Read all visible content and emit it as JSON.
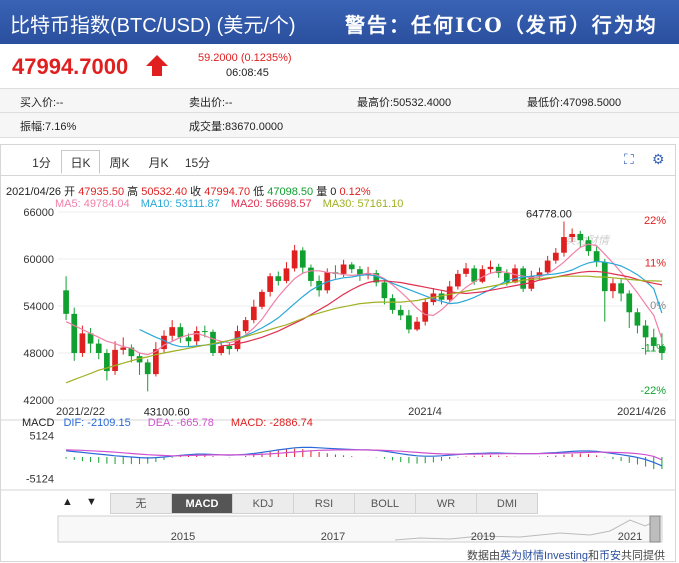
{
  "header": {
    "title": "比特币指数(BTC/USD) (美元/个)",
    "warning": "警告：任何ICO（发币）行为均"
  },
  "quote": {
    "price": "47994.7000",
    "change": "59.2000 (0.1235%)",
    "time": "06:08:45"
  },
  "stats": {
    "bid": "买入价:--",
    "ask": "卖出价:--",
    "high": "最高价:50532.4000",
    "low": "最低价:47098.5000",
    "amplitude": "振幅:7.16%",
    "volume": "成交量:83670.0000"
  },
  "tabs": [
    "1分",
    "日K",
    "周K",
    "月K",
    "15分"
  ],
  "active_tab": "日K",
  "icons": [
    "fullscreen-icon",
    "settings-icon"
  ],
  "bar_info": {
    "date": "2021/04/26",
    "open_label": "开",
    "open": "47935.50",
    "high_label": "高",
    "high": "50532.40",
    "close_label": "收",
    "close": "47994.70",
    "low_label": "低",
    "low": "47098.50",
    "vol_label": "量",
    "vol": "0",
    "pct": "0.12%"
  },
  "ma_legend": [
    {
      "label": "MA5: 49784.04",
      "color": "#f080a8"
    },
    {
      "label": "MA10: 53111.87",
      "color": "#2aa8d8"
    },
    {
      "label": "MA20: 56698.57",
      "color": "#e03050"
    },
    {
      "label": "MA30: 57161.10",
      "color": "#a0b020"
    }
  ],
  "macd_legend": {
    "name": "MACD",
    "dif": "DIF: -2109.15",
    "dea": "DEA: -665.78",
    "macd": "MACD: -2886.74"
  },
  "indicator_tabs": [
    "无",
    "MACD",
    "KDJ",
    "RSI",
    "BOLL",
    "WR",
    "DMI"
  ],
  "active_indicator": "MACD",
  "nav_buttons": [
    "▲",
    "▼"
  ],
  "footer": {
    "prefix": "数据由",
    "src1": "英为财情Investing",
    "mid": "和",
    "src2": "币安",
    "suffix": "共同提供"
  },
  "watermark": "英为财情",
  "colors": {
    "up": "#e02020",
    "down": "#10a030",
    "header": "#2a4f9e"
  },
  "chart_data": [
    {
      "type": "candlestick",
      "x_ticks": [
        "2021/2/22",
        "2021/4",
        "2021/4/26"
      ],
      "y_ticks": [
        42000,
        48000,
        54000,
        60000,
        66000
      ],
      "y_ticks_right": [
        "22%",
        "11%",
        "0%",
        "-11%",
        "-22%"
      ],
      "ylim": [
        42000,
        66000
      ],
      "annotations": {
        "max": "64778.00",
        "min": "43100.60"
      },
      "candles": [
        [
          56000,
          53000,
          57800,
          52200
        ],
        [
          53000,
          48000,
          53800,
          47000
        ],
        [
          48000,
          50500,
          51500,
          47500
        ],
        [
          50500,
          49200,
          51200,
          48000
        ],
        [
          49200,
          48000,
          49800,
          47200
        ],
        [
          48000,
          45700,
          48500,
          44500
        ],
        [
          45700,
          48400,
          49500,
          45200
        ],
        [
          48400,
          48700,
          50000,
          47800
        ],
        [
          48700,
          47600,
          49100,
          46800
        ],
        [
          47600,
          46800,
          48000,
          45200
        ],
        [
          46800,
          45300,
          47200,
          43100
        ],
        [
          45300,
          48500,
          49400,
          45000
        ],
        [
          48500,
          50200,
          50900,
          48000
        ],
        [
          50200,
          51300,
          52200,
          49600
        ],
        [
          51300,
          50000,
          51800,
          49300
        ],
        [
          50000,
          49500,
          50500,
          48800
        ],
        [
          49500,
          50800,
          51400,
          49000
        ],
        [
          50800,
          50700,
          51500,
          50000
        ],
        [
          50700,
          48000,
          51000,
          47600
        ],
        [
          48000,
          48900,
          49500,
          47700
        ],
        [
          48900,
          48500,
          49300,
          47800
        ],
        [
          48500,
          50800,
          51500,
          48200
        ],
        [
          50800,
          52200,
          52600,
          50500
        ],
        [
          52200,
          53900,
          54800,
          51800
        ],
        [
          53900,
          55800,
          56100,
          53600
        ],
        [
          55800,
          57800,
          58200,
          55200
        ],
        [
          57800,
          57200,
          58400,
          56600
        ],
        [
          57200,
          58800,
          59600,
          56900
        ],
        [
          58800,
          61100,
          61800,
          58400
        ],
        [
          61100,
          58900,
          61500,
          58100
        ],
        [
          58900,
          57200,
          59300,
          56500
        ],
        [
          57200,
          56000,
          57900,
          55200
        ],
        [
          56000,
          58300,
          58800,
          55600
        ],
        [
          58300,
          58100,
          59200,
          57500
        ],
        [
          58100,
          59300,
          59900,
          57700
        ],
        [
          59300,
          58700,
          59600,
          58200
        ],
        [
          58700,
          57900,
          59100,
          57200
        ],
        [
          57900,
          58200,
          59000,
          57400
        ],
        [
          58200,
          57000,
          58600,
          56500
        ],
        [
          57000,
          55000,
          57300,
          54200
        ],
        [
          55000,
          53500,
          55500,
          53000
        ],
        [
          53500,
          52800,
          54100,
          52200
        ],
        [
          52800,
          51000,
          53500,
          50500
        ],
        [
          51000,
          52000,
          52600,
          50800
        ],
        [
          52000,
          54500,
          55000,
          51500
        ],
        [
          54500,
          55600,
          56300,
          54100
        ],
        [
          55600,
          54800,
          56000,
          54200
        ],
        [
          54800,
          56500,
          57200,
          54500
        ],
        [
          56500,
          58100,
          58600,
          56100
        ],
        [
          58100,
          58800,
          59500,
          57700
        ],
        [
          58800,
          57100,
          59200,
          56700
        ],
        [
          57100,
          58700,
          59200,
          56900
        ],
        [
          58700,
          59000,
          59800,
          58100
        ],
        [
          59000,
          58200,
          59400,
          57600
        ],
        [
          58200,
          57000,
          58700,
          56600
        ],
        [
          57000,
          58800,
          59300,
          56900
        ],
        [
          58800,
          56200,
          59100,
          55800
        ],
        [
          56200,
          57800,
          58500,
          55900
        ],
        [
          57800,
          58300,
          58900,
          57400
        ],
        [
          58300,
          59800,
          60400,
          58000
        ],
        [
          59800,
          60800,
          61400,
          59400
        ],
        [
          60800,
          62800,
          64778,
          60300
        ],
        [
          62800,
          63200,
          63900,
          62200
        ],
        [
          63200,
          62400,
          63600,
          61500
        ],
        [
          62400,
          61000,
          62900,
          60400
        ],
        [
          61000,
          59600,
          61600,
          59000
        ],
        [
          59600,
          55900,
          60000,
          52000
        ],
        [
          55900,
          56900,
          57500,
          55000
        ],
        [
          56900,
          55600,
          57400,
          54600
        ],
        [
          55600,
          53200,
          56000,
          51200
        ],
        [
          53200,
          51500,
          53700,
          50500
        ],
        [
          51500,
          50000,
          52200,
          47800
        ],
        [
          50000,
          48900,
          51100,
          48300
        ],
        [
          48900,
          47994.7,
          50532.4,
          47098.5
        ]
      ],
      "ma": {
        "MA5": [
          52000,
          51500,
          51000,
          50500,
          50000,
          49500,
          49200,
          48800,
          48600,
          48000,
          47800,
          48200,
          49000,
          49500,
          50000,
          50300,
          50500,
          50200,
          49800,
          49500,
          49300,
          49600,
          50300,
          51200,
          52300,
          53800,
          55200,
          56400,
          57500,
          58200,
          58500,
          58500,
          58300,
          58200,
          58000,
          57900,
          58000,
          58200,
          58000,
          57500,
          56700,
          55800,
          54800,
          53700,
          52900,
          52800,
          53500,
          54500,
          55500,
          56400,
          57100,
          57700,
          58200,
          58400,
          58300,
          58000,
          57800,
          57600,
          57700,
          58100,
          58800,
          59600,
          60600,
          61500,
          61900,
          61700,
          60600,
          59500,
          58300,
          57000,
          55700,
          54200,
          52800,
          49784.04
        ],
        "MA10": [
          null,
          null,
          null,
          null,
          null,
          null,
          null,
          null,
          null,
          51000,
          50500,
          50000,
          49600,
          49100,
          48800,
          48800,
          48900,
          49000,
          49100,
          49300,
          49600,
          49900,
          50200,
          50700,
          51200,
          51800,
          52500,
          53400,
          54300,
          55200,
          56000,
          56600,
          57100,
          57400,
          57600,
          57700,
          57900,
          58000,
          57800,
          57400,
          56900,
          56500,
          56100,
          55700,
          55300,
          54900,
          54600,
          54300,
          54400,
          54700,
          55100,
          55600,
          56100,
          56700,
          57200,
          57500,
          57700,
          57800,
          57900,
          58000,
          58100,
          58300,
          58600,
          59100,
          59500,
          59700,
          59600,
          59400,
          59100,
          58600,
          58000,
          57200,
          56200,
          53111.87
        ],
        "MA20": [
          null,
          null,
          null,
          null,
          null,
          null,
          null,
          null,
          null,
          null,
          null,
          null,
          null,
          null,
          null,
          null,
          null,
          null,
          null,
          48900,
          49000,
          49200,
          49400,
          49700,
          50000,
          50400,
          50800,
          51300,
          51800,
          52300,
          52900,
          53500,
          54100,
          54800,
          55500,
          56100,
          56600,
          57000,
          57200,
          57200,
          57100,
          57000,
          56800,
          56600,
          56400,
          56200,
          56000,
          55800,
          55700,
          55600,
          55700,
          55800,
          56000,
          56200,
          56400,
          56600,
          56800,
          57000,
          57300,
          57500,
          57700,
          57900,
          58100,
          58300,
          58400,
          58400,
          58300,
          58100,
          57900,
          57700,
          57400,
          57100,
          56900,
          56698.57
        ],
        "MA30": [
          44200,
          44600,
          45000,
          45400,
          45800,
          46100,
          46400,
          46700,
          47000,
          47300,
          47500,
          47800,
          48000,
          48200,
          48400,
          48600,
          48800,
          49000,
          49200,
          49400,
          49600,
          49800,
          50100,
          50400,
          50700,
          51000,
          51300,
          51600,
          52000,
          52400,
          52800,
          53100,
          53400,
          53700,
          53900,
          54100,
          54300,
          54400,
          54500,
          54500,
          54500,
          54500,
          54600,
          54700,
          54900,
          55100,
          55300,
          55500,
          55700,
          55900,
          56100,
          56300,
          56500,
          56700,
          56900,
          57100,
          57300,
          57400,
          57500,
          57600,
          57700,
          57800,
          57800,
          57800,
          57800,
          57700,
          57700,
          57600,
          57500,
          57400,
          57300,
          57200,
          57200,
          57161.1
        ]
      }
    },
    {
      "type": "macd",
      "y_ticks": [
        5124,
        -5124
      ],
      "ylim": [
        -6000,
        6000
      ],
      "dif": [
        1500,
        1300,
        1100,
        900,
        700,
        500,
        300,
        150,
        0,
        -150,
        -250,
        -150,
        0,
        200,
        400,
        550,
        700,
        700,
        600,
        500,
        450,
        500,
        650,
        850,
        1100,
        1400,
        1700,
        1950,
        2200,
        2300,
        2300,
        2200,
        2100,
        2000,
        1900,
        1800,
        1700,
        1700,
        1600,
        1400,
        1100,
        800,
        500,
        300,
        200,
        200,
        300,
        450,
        600,
        750,
        850,
        900,
        950,
        950,
        900,
        850,
        800,
        800,
        850,
        950,
        1050,
        1200,
        1350,
        1450,
        1450,
        1350,
        1100,
        850,
        550,
        250,
        -100,
        -600,
        -1300,
        -2109.15
      ],
      "dea": [
        1700,
        1650,
        1600,
        1500,
        1400,
        1300,
        1150,
        1000,
        850,
        700,
        550,
        450,
        350,
        300,
        300,
        350,
        400,
        450,
        500,
        500,
        500,
        500,
        520,
        580,
        650,
        750,
        900,
        1050,
        1200,
        1350,
        1500,
        1600,
        1650,
        1700,
        1700,
        1700,
        1700,
        1680,
        1650,
        1600,
        1500,
        1400,
        1250,
        1100,
        950,
        850,
        750,
        700,
        680,
        680,
        700,
        720,
        750,
        780,
        800,
        800,
        800,
        800,
        810,
        830,
        870,
        920,
        980,
        1050,
        1100,
        1150,
        1150,
        1100,
        1050,
        950,
        800,
        550,
        150,
        -665.78
      ],
      "macd": [
        -400,
        -700,
        -1000,
        -1200,
        -1400,
        -1600,
        -1700,
        -1700,
        -1700,
        -1700,
        -1600,
        -1200,
        -700,
        -200,
        200,
        400,
        600,
        500,
        200,
        0,
        -100,
        0,
        260,
        540,
        900,
        1300,
        1600,
        1800,
        2000,
        1900,
        1600,
        1200,
        900,
        600,
        400,
        200,
        0,
        40,
        -100,
        -400,
        -800,
        -1200,
        -1500,
        -1600,
        -1500,
        -1300,
        -900,
        -500,
        -160,
        140,
        300,
        360,
        400,
        340,
        200,
        100,
        0,
        0,
        80,
        240,
        360,
        560,
        740,
        800,
        700,
        400,
        -100,
        -500,
        -1000,
        -1400,
        -1800,
        -2300,
        -2900,
        -2886.74
      ]
    }
  ],
  "nav_years": [
    "2015",
    "2017",
    "2019",
    "2021"
  ]
}
